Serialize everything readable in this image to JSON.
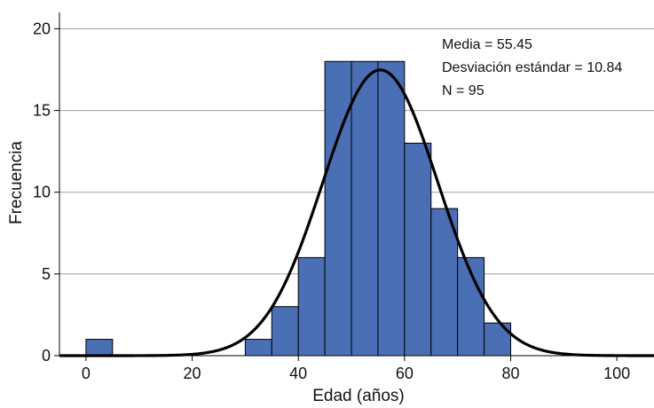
{
  "chart_data": {
    "type": "bar",
    "subtype": "histogram",
    "xlabel": "Edad (años)",
    "ylabel": "Frecuencia",
    "xlim": [
      -5,
      107
    ],
    "ylim": [
      0,
      21
    ],
    "x_ticks": [
      "0",
      "20",
      "40",
      "60",
      "80",
      "100"
    ],
    "y_ticks": [
      "0",
      "5",
      "10",
      "15",
      "20"
    ],
    "bin_width": 5,
    "bins": [
      {
        "start": 0,
        "end": 5,
        "count": 1
      },
      {
        "start": 30,
        "end": 35,
        "count": 1
      },
      {
        "start": 35,
        "end": 40,
        "count": 3
      },
      {
        "start": 40,
        "end": 45,
        "count": 6
      },
      {
        "start": 45,
        "end": 50,
        "count": 18
      },
      {
        "start": 50,
        "end": 55,
        "count": 18
      },
      {
        "start": 55,
        "end": 60,
        "count": 18
      },
      {
        "start": 60,
        "end": 65,
        "count": 13
      },
      {
        "start": 65,
        "end": 70,
        "count": 9
      },
      {
        "start": 70,
        "end": 75,
        "count": 6
      },
      {
        "start": 75,
        "end": 80,
        "count": 2
      }
    ],
    "normal_curve": {
      "mean": 55.45,
      "sd": 10.84,
      "n": 95
    },
    "annotations": [
      "Media = 55.45",
      "Desviación estándar = 10.84",
      "N = 95"
    ],
    "grid": "horizontal",
    "colors": {
      "bars": "#4a6fb5",
      "bar_edge": "#000000",
      "curve": "#000000",
      "grid": "#9e9e9e"
    }
  }
}
